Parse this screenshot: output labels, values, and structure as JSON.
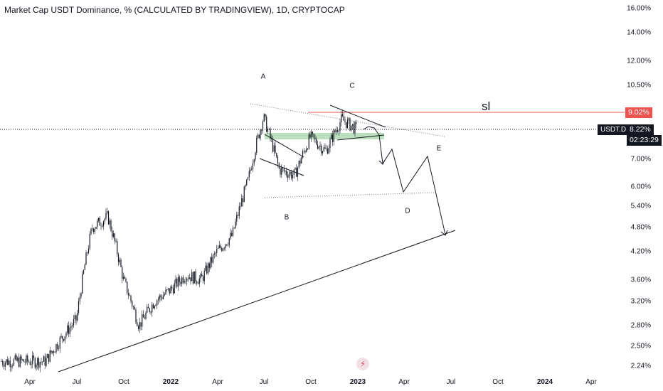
{
  "title": "Market Cap USDT Dominance, % (CALCULATED BY TRADINGVIEW), 1D, CRYPTOCAP",
  "symbol": "USDT.D",
  "last_price": "8.22%",
  "countdown": "02:23:29",
  "stop_loss": {
    "label": "sl",
    "level": "9.02%"
  },
  "price_axis": [
    "16.00%",
    "14.00%",
    "12.00%",
    "10.50%",
    "9.02%",
    "8.22%",
    "7.00%",
    "6.00%",
    "5.40%",
    "4.80%",
    "4.20%",
    "3.60%",
    "3.20%",
    "2.80%",
    "2.50%",
    "2.24%"
  ],
  "time_axis": [
    "Apr",
    "Jul",
    "Oct",
    "2022",
    "Apr",
    "Jul",
    "Oct",
    "2023",
    "Apr",
    "Jul",
    "Oct",
    "2024",
    "Apr"
  ],
  "wave_labels": [
    "A",
    "B",
    "C",
    "D",
    "E"
  ],
  "colors": {
    "candle": "#131722",
    "stop_loss_line": "#ef5350",
    "support_zone": "#a5d6a7",
    "last_price_line": "#131722"
  },
  "chart_data": {
    "type": "line",
    "title": "Market Cap USDT Dominance, % (CALCULATED BY TRADINGVIEW), 1D, CRYPTOCAP",
    "scale": "log",
    "ylim": [
      2.2,
      16.5
    ],
    "x": [
      "2021-04",
      "2021-05",
      "2021-06",
      "2021-07",
      "2021-08",
      "2021-09",
      "2021-10",
      "2021-11",
      "2021-12",
      "2022-01",
      "2022-02",
      "2022-03",
      "2022-04",
      "2022-05",
      "2022-06",
      "2022-07",
      "2022-08",
      "2022-09",
      "2022-10",
      "2022-11",
      "2022-12",
      "2023-01"
    ],
    "series": [
      {
        "values": [
          2.3,
          2.3,
          2.6,
          2.9,
          4.8,
          5.1,
          3.6,
          2.8,
          3.2,
          3.4,
          3.7,
          3.6,
          4.2,
          4.6,
          6.2,
          8.8,
          6.6,
          6.4,
          7.9,
          7.3,
          8.7,
          8.22
        ]
      }
    ]
  }
}
